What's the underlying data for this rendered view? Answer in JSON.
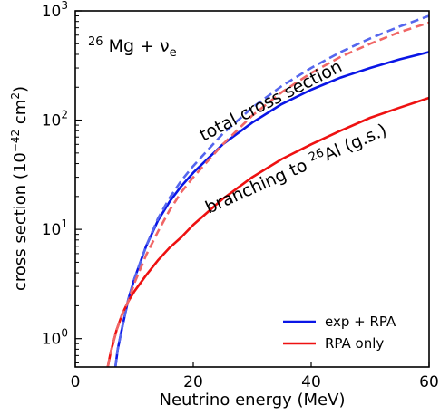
{
  "chart_data": {
    "type": "line",
    "xlabel": "Neutrino energy (MeV)",
    "ylabel": {
      "main": "cross section (10",
      "exp": "−42",
      "unit": " cm",
      "unit_exp": "2",
      "close": ")"
    },
    "xlim": [
      0,
      60
    ],
    "ylim": [
      0.55,
      1000
    ],
    "yscale": "log",
    "grid": false,
    "legend_position": "bottom-right",
    "x_ticks": [
      {
        "value": 0,
        "label": "0"
      },
      {
        "value": 20,
        "label": "20"
      },
      {
        "value": 40,
        "label": "40"
      },
      {
        "value": 60,
        "label": "60"
      }
    ],
    "y_ticks": [
      {
        "value": 1,
        "base": "10",
        "exp": "0"
      },
      {
        "value": 10,
        "base": "10",
        "exp": "1"
      },
      {
        "value": 100,
        "base": "10",
        "exp": "2"
      },
      {
        "value": 1000,
        "base": "10",
        "exp": "3"
      }
    ],
    "inset_label": {
      "sup": "26",
      "text": " Mg + ν",
      "sub": "e"
    },
    "annotations": {
      "total": "total cross section",
      "branching_pre": "branching to ",
      "branching_sup": "26",
      "branching_post": "Al (g.s.)"
    },
    "legend": [
      {
        "name": "exp + RPA",
        "color": "#0a16e6"
      },
      {
        "name": "RPA only",
        "color": "#ee1111"
      }
    ],
    "series": [
      {
        "name": "exp + RPA",
        "group": "branching",
        "style": "solid",
        "color": "#0a16e6",
        "x": [
          6.8,
          7.2,
          8,
          9,
          10,
          12,
          14,
          16,
          18,
          20,
          25,
          30,
          35,
          40,
          45,
          50,
          55,
          60
        ],
        "y": [
          0.55,
          0.8,
          1.3,
          2.3,
          3.5,
          7,
          12,
          18,
          25,
          33,
          60,
          95,
          140,
          190,
          245,
          300,
          360,
          420
        ]
      },
      {
        "name": "exp + RPA",
        "group": "total",
        "style": "dashed",
        "color": "#5566ee",
        "x": [
          6.8,
          7.2,
          8,
          9,
          10,
          12,
          14,
          16,
          18,
          20,
          25,
          30,
          35,
          40,
          45,
          50,
          55,
          60
        ],
        "y": [
          0.55,
          0.8,
          1.3,
          2.3,
          3.5,
          7,
          12.5,
          19.5,
          28,
          38,
          75,
          130,
          205,
          300,
          420,
          560,
          720,
          900
        ]
      },
      {
        "name": "RPA only",
        "group": "branching",
        "style": "solid",
        "color": "#ee1111",
        "x": [
          5.5,
          6,
          7,
          8,
          9,
          10,
          12,
          14,
          16,
          18,
          20,
          25,
          30,
          35,
          40,
          45,
          50,
          55,
          60
        ],
        "y": [
          0.55,
          0.75,
          1.2,
          1.7,
          2.2,
          2.7,
          3.8,
          5.2,
          6.8,
          8.5,
          11,
          19,
          30,
          44,
          60,
          80,
          105,
          130,
          160
        ]
      },
      {
        "name": "RPA only",
        "group": "total",
        "style": "dashed",
        "color": "#f06666",
        "x": [
          5.5,
          6,
          7,
          8,
          9,
          10,
          12,
          14,
          16,
          18,
          20,
          25,
          30,
          35,
          40,
          45,
          50,
          55,
          60
        ],
        "y": [
          0.55,
          0.75,
          1.2,
          1.7,
          2.2,
          3.2,
          5.8,
          9.5,
          15,
          22,
          30,
          60,
          110,
          180,
          270,
          380,
          500,
          640,
          780
        ]
      }
    ]
  }
}
